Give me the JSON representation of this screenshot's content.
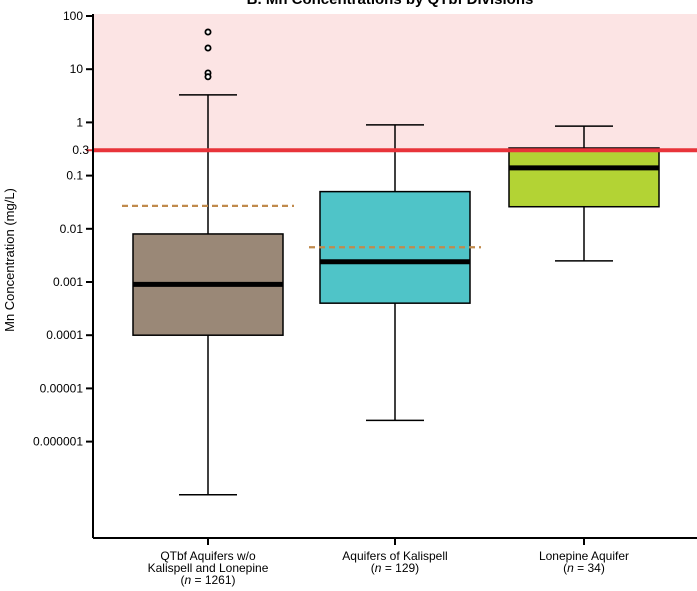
{
  "chart_data": {
    "type": "box",
    "title": "B. Mn Concentrations by QTbf Divisions",
    "ylabel": "Mn Concentration (mg/L)",
    "y_scale": "log",
    "ylim": [
      1e-07,
      150
    ],
    "y_ticks": [
      {
        "value": 100,
        "label": "100"
      },
      {
        "value": 10,
        "label": "10"
      },
      {
        "value": 1,
        "label": "1"
      },
      {
        "value": 0.1,
        "label": "0.1"
      },
      {
        "value": 0.01,
        "label": "0.01"
      },
      {
        "value": 0.001,
        "label": "0.001"
      },
      {
        "value": 0.0001,
        "label": "0.0001"
      },
      {
        "value": 1e-05,
        "label": "0.00001"
      },
      {
        "value": 1e-06,
        "label": "0.000001"
      }
    ],
    "threshold": {
      "value": 0.3,
      "label": "0.3",
      "color": "#e8343a",
      "band_color": "#fce4e4"
    },
    "mean_line_color": "#c08a4c",
    "groups": [
      {
        "label_lines": [
          "QTbf Aquifers w/o",
          "Kalispell and Lonepine"
        ],
        "n_prefix": "n",
        "n_text": " = 1261)",
        "color": "#9a8877",
        "whisker_low": 1e-07,
        "q1": 0.0001,
        "median": 0.0009,
        "q3": 0.008,
        "whisker_high": 3.3,
        "mean": 0.027,
        "outliers": [
          50,
          25,
          8.5,
          7.2
        ]
      },
      {
        "label_lines": [
          "Aquifers of Kalispell"
        ],
        "n_prefix": "n",
        "n_text": " = 129)",
        "color": "#4fc4c8",
        "whisker_low": 2.5e-06,
        "q1": 0.0004,
        "median": 0.0024,
        "q3": 0.05,
        "whisker_high": 0.9,
        "mean": 0.0045,
        "outliers": []
      },
      {
        "label_lines": [
          "Lonepine Aquifer"
        ],
        "n_prefix": "n",
        "n_text": " = 34)",
        "color": "#b3d334",
        "whisker_low": 0.0025,
        "q1": 0.026,
        "median": 0.14,
        "q3": 0.33,
        "whisker_high": 0.85,
        "mean": null,
        "outliers": []
      }
    ]
  }
}
